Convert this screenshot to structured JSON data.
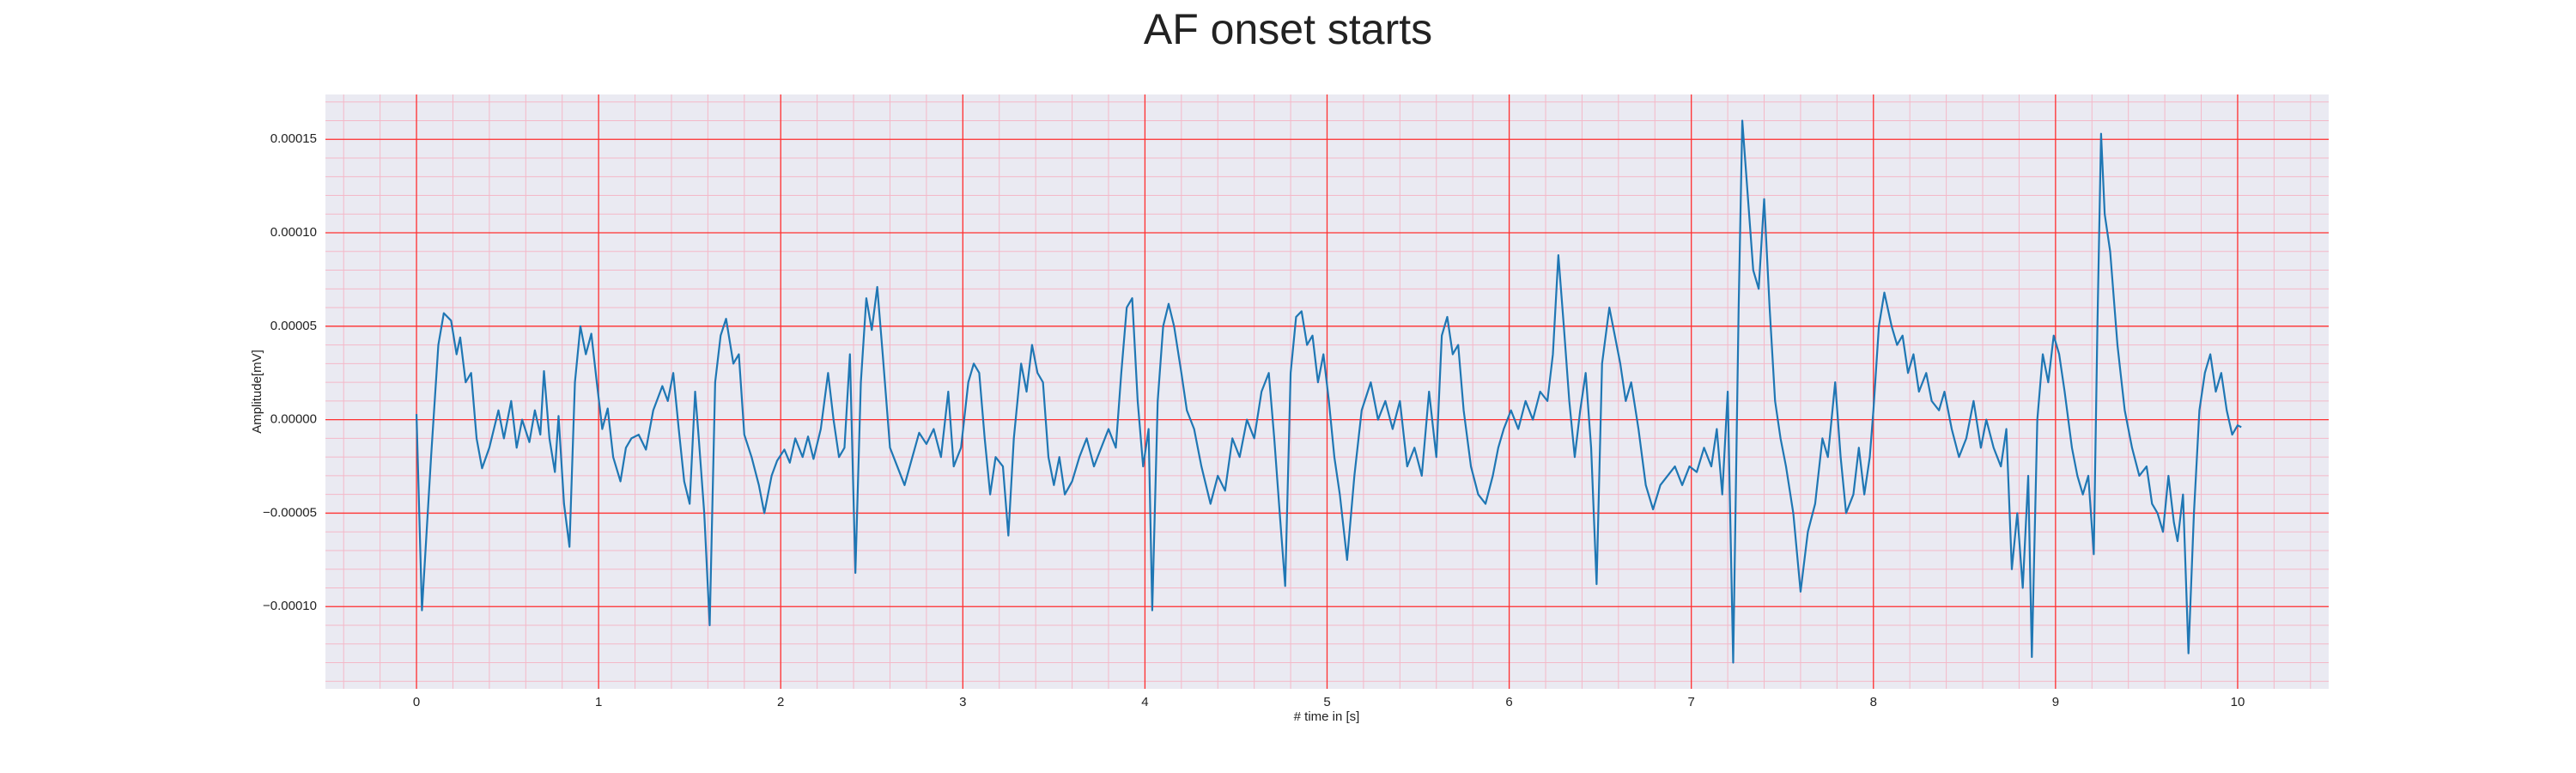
{
  "chart_data": {
    "type": "line",
    "title": "AF onset starts",
    "xlabel": "# time in [s]",
    "ylabel": "Amplitude[mV]",
    "x": [
      0.0,
      0.03,
      0.08,
      0.12,
      0.15,
      0.19,
      0.22,
      0.24,
      0.27,
      0.3,
      0.33,
      0.36,
      0.4,
      0.45,
      0.48,
      0.52,
      0.55,
      0.58,
      0.62,
      0.65,
      0.68,
      0.7,
      0.73,
      0.76,
      0.78,
      0.81,
      0.84,
      0.87,
      0.9,
      0.93,
      0.96,
      0.99,
      1.02,
      1.05,
      1.08,
      1.12,
      1.15,
      1.18,
      1.22,
      1.26,
      1.3,
      1.35,
      1.38,
      1.41,
      1.44,
      1.47,
      1.5,
      1.53,
      1.55,
      1.58,
      1.61,
      1.64,
      1.67,
      1.7,
      1.74,
      1.77,
      1.8,
      1.84,
      1.88,
      1.91,
      1.95,
      1.98,
      2.02,
      2.05,
      2.08,
      2.12,
      2.15,
      2.18,
      2.22,
      2.26,
      2.29,
      2.32,
      2.35,
      2.38,
      2.41,
      2.44,
      2.47,
      2.5,
      2.53,
      2.56,
      2.6,
      2.64,
      2.68,
      2.72,
      2.76,
      2.8,
      2.84,
      2.88,
      2.92,
      2.95,
      2.99,
      3.03,
      3.06,
      3.09,
      3.12,
      3.15,
      3.18,
      3.22,
      3.25,
      3.28,
      3.32,
      3.35,
      3.38,
      3.41,
      3.44,
      3.47,
      3.5,
      3.53,
      3.56,
      3.6,
      3.64,
      3.68,
      3.72,
      3.76,
      3.8,
      3.84,
      3.87,
      3.9,
      3.93,
      3.96,
      3.99,
      4.02,
      4.04,
      4.07,
      4.1,
      4.13,
      4.16,
      4.2,
      4.23,
      4.27,
      4.31,
      4.36,
      4.4,
      4.44,
      4.48,
      4.52,
      4.56,
      4.6,
      4.64,
      4.68,
      4.71,
      4.74,
      4.77,
      4.8,
      4.83,
      4.86,
      4.89,
      4.92,
      4.95,
      4.98,
      5.01,
      5.04,
      5.07,
      5.11,
      5.15,
      5.19,
      5.24,
      5.28,
      5.32,
      5.36,
      5.4,
      5.44,
      5.48,
      5.52,
      5.56,
      5.6,
      5.63,
      5.66,
      5.69,
      5.72,
      5.75,
      5.79,
      5.83,
      5.87,
      5.91,
      5.94,
      5.97,
      6.01,
      6.05,
      6.09,
      6.13,
      6.17,
      6.21,
      6.24,
      6.27,
      6.3,
      6.33,
      6.36,
      6.39,
      6.42,
      6.45,
      6.48,
      6.51,
      6.55,
      6.58,
      6.61,
      6.64,
      6.67,
      6.71,
      6.75,
      6.79,
      6.83,
      6.87,
      6.91,
      6.95,
      6.99,
      7.03,
      7.07,
      7.11,
      7.14,
      7.17,
      7.2,
      7.23,
      7.26,
      7.28,
      7.31,
      7.34,
      7.37,
      7.4,
      7.43,
      7.46,
      7.49,
      7.52,
      7.56,
      7.6,
      7.64,
      7.68,
      7.72,
      7.75,
      7.79,
      7.82,
      7.85,
      7.89,
      7.92,
      7.95,
      7.98,
      8.0,
      8.03,
      8.06,
      8.1,
      8.13,
      8.16,
      8.19,
      8.22,
      8.25,
      8.29,
      8.32,
      8.36,
      8.39,
      8.43,
      8.47,
      8.51,
      8.55,
      8.59,
      8.62,
      8.66,
      8.7,
      8.73,
      8.76,
      8.79,
      8.82,
      8.85,
      8.87,
      8.9,
      8.93,
      8.96,
      8.99,
      9.02,
      9.05,
      9.09,
      9.12,
      9.15,
      9.18,
      9.21,
      9.23,
      9.25,
      9.27,
      9.3,
      9.34,
      9.38,
      9.42,
      9.46,
      9.5,
      9.53,
      9.56,
      9.59,
      9.62,
      9.65,
      9.67,
      9.7,
      9.73,
      9.76,
      9.79,
      9.82,
      9.85,
      9.88,
      9.91,
      9.94,
      9.97,
      10.0,
      10.02
    ],
    "series": [
      {
        "name": "signal",
        "color": "#1f77b4",
        "values": [
          3e-06,
          -0.000102,
          -2e-05,
          4e-05,
          5.7e-05,
          5.3e-05,
          3.5e-05,
          4.4e-05,
          2e-05,
          2.5e-05,
          -1e-05,
          -2.6e-05,
          -1.5e-05,
          5e-06,
          -1e-05,
          1e-05,
          -1.5e-05,
          0,
          -1.2e-05,
          5e-06,
          -8e-06,
          2.6e-05,
          -1e-05,
          -2.8e-05,
          2e-06,
          -4.5e-05,
          -6.8e-05,
          2e-05,
          5e-05,
          3.5e-05,
          4.6e-05,
          2e-05,
          -5e-06,
          6e-06,
          -2e-05,
          -3.3e-05,
          -1.5e-05,
          -1e-05,
          -8e-06,
          -1.6e-05,
          5e-06,
          1.8e-05,
          1e-05,
          2.5e-05,
          -5e-06,
          -3.3e-05,
          -4.5e-05,
          1.5e-05,
          -1e-05,
          -5e-05,
          -0.00011,
          2e-05,
          4.5e-05,
          5.4e-05,
          3e-05,
          3.5e-05,
          -8e-06,
          -2e-05,
          -3.5e-05,
          -5e-05,
          -3e-05,
          -2.2e-05,
          -1.6e-05,
          -2.3e-05,
          -1e-05,
          -2e-05,
          -9e-06,
          -2.1e-05,
          -5e-06,
          2.5e-05,
          0,
          -2e-05,
          -1.5e-05,
          3.5e-05,
          -8.2e-05,
          2e-05,
          6.5e-05,
          4.8e-05,
          7.1e-05,
          3.5e-05,
          -1.5e-05,
          -2.5e-05,
          -3.5e-05,
          -2.1e-05,
          -7e-06,
          -1.3e-05,
          -5e-06,
          -2e-05,
          1.5e-05,
          -2.5e-05,
          -1.5e-05,
          2e-05,
          3e-05,
          2.5e-05,
          -1e-05,
          -4e-05,
          -2e-05,
          -2.5e-05,
          -6.2e-05,
          -1e-05,
          3e-05,
          1.5e-05,
          4e-05,
          2.5e-05,
          2e-05,
          -2e-05,
          -3.5e-05,
          -2e-05,
          -4e-05,
          -3.3e-05,
          -2e-05,
          -1e-05,
          -2.5e-05,
          -1.5e-05,
          -5e-06,
          -1.5e-05,
          2.5e-05,
          6e-05,
          6.5e-05,
          1e-05,
          -2.5e-05,
          -5e-06,
          -0.000102,
          1e-05,
          5e-05,
          6.2e-05,
          5e-05,
          2.5e-05,
          5e-06,
          -5e-06,
          -2.5e-05,
          -4.5e-05,
          -3e-05,
          -3.8e-05,
          -1e-05,
          -2e-05,
          0,
          -1e-05,
          1.5e-05,
          2.5e-05,
          -1e-05,
          -5e-05,
          -8.9e-05,
          2.5e-05,
          5.5e-05,
          5.8e-05,
          4e-05,
          4.5e-05,
          2e-05,
          3.5e-05,
          1e-05,
          -2e-05,
          -4e-05,
          -7.5e-05,
          -3e-05,
          5e-06,
          2e-05,
          0,
          1e-05,
          -5e-06,
          1e-05,
          -2.5e-05,
          -1.5e-05,
          -3e-05,
          1.5e-05,
          -2e-05,
          4.5e-05,
          5.5e-05,
          3.5e-05,
          4e-05,
          5e-06,
          -2.5e-05,
          -4e-05,
          -4.5e-05,
          -3e-05,
          -1.5e-05,
          -5e-06,
          5e-06,
          -5e-06,
          1e-05,
          0,
          1.5e-05,
          1e-05,
          3.5e-05,
          8.8e-05,
          5e-05,
          1e-05,
          -2e-05,
          5e-06,
          2.5e-05,
          -1.5e-05,
          -8.8e-05,
          3e-05,
          6e-05,
          4.5e-05,
          3e-05,
          1e-05,
          2e-05,
          -5e-06,
          -3.5e-05,
          -4.8e-05,
          -3.5e-05,
          -3e-05,
          -2.5e-05,
          -3.5e-05,
          -2.5e-05,
          -2.8e-05,
          -1.5e-05,
          -2.5e-05,
          -5e-06,
          -4e-05,
          1.5e-05,
          -0.00013,
          6e-05,
          0.00016,
          0.00012,
          8e-05,
          7e-05,
          0.000118,
          6e-05,
          1e-05,
          -1e-05,
          -2.5e-05,
          -5e-05,
          -9.2e-05,
          -6e-05,
          -4.5e-05,
          -1e-05,
          -2e-05,
          2e-05,
          -2e-05,
          -5e-05,
          -4e-05,
          -1.5e-05,
          -4e-05,
          -2e-05,
          5e-06,
          5e-05,
          6.8e-05,
          5e-05,
          4e-05,
          4.5e-05,
          2.5e-05,
          3.5e-05,
          1.5e-05,
          2.5e-05,
          1e-05,
          5e-06,
          1.5e-05,
          -5e-06,
          -2e-05,
          -1e-05,
          1e-05,
          -1.5e-05,
          0,
          -1.5e-05,
          -2.5e-05,
          -5e-06,
          -8e-05,
          -5e-05,
          -9e-05,
          -3e-05,
          -0.000127,
          0,
          3.5e-05,
          2e-05,
          4.5e-05,
          3.5e-05,
          1.5e-05,
          -1.5e-05,
          -3e-05,
          -4e-05,
          -3e-05,
          -7.2e-05,
          5e-05,
          0.000153,
          0.00011,
          9e-05,
          4e-05,
          5e-06,
          -1.5e-05,
          -3e-05,
          -2.5e-05,
          -4.5e-05,
          -5e-05,
          -6e-05,
          -3e-05,
          -5.5e-05,
          -6.5e-05,
          -4e-05,
          -0.000125,
          -5e-05,
          5e-06,
          2.5e-05,
          3.5e-05,
          1.5e-05,
          2.5e-05,
          5e-06,
          -8e-06,
          -3e-06,
          -4e-06
        ]
      }
    ],
    "xlim": [
      -0.5,
      10.5
    ],
    "xticks": [
      0,
      1,
      2,
      3,
      4,
      5,
      6,
      7,
      8,
      9,
      10
    ],
    "ylim": [
      -0.000144,
      0.000174
    ],
    "yticks": [
      {
        "value": -0.0001,
        "label": "−0.00010"
      },
      {
        "value": -5e-05,
        "label": "−0.00005"
      },
      {
        "value": 0,
        "label": "0.00000"
      },
      {
        "value": 5e-05,
        "label": "0.00005"
      },
      {
        "value": 0.0001,
        "label": "0.00010"
      },
      {
        "value": 0.00015,
        "label": "0.00015"
      }
    ],
    "grid": true,
    "grid_color": "#ff3030",
    "minor_grid": true,
    "background": "#eaeaf2"
  }
}
